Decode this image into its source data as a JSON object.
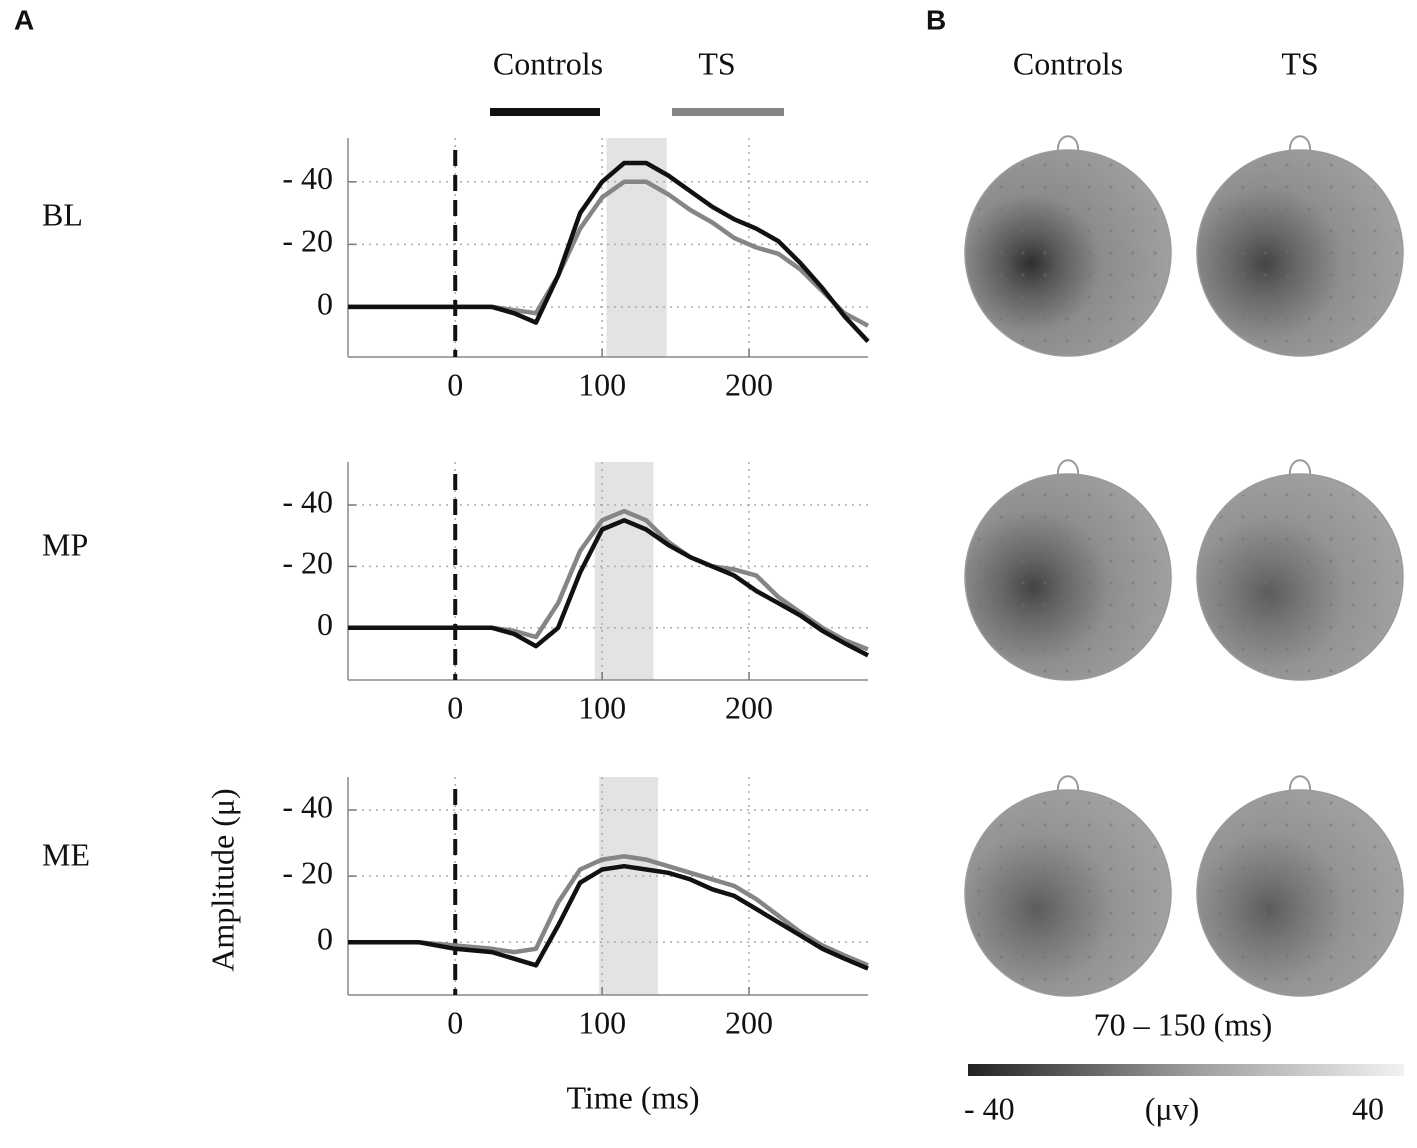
{
  "panels": [
    "A",
    "B"
  ],
  "chart_data": [
    {
      "type": "line",
      "title": "BL",
      "x": [
        -73,
        -50,
        -25,
        0,
        25,
        40,
        55,
        70,
        85,
        100,
        115,
        130,
        145,
        160,
        175,
        190,
        205,
        220,
        235,
        250,
        265,
        281
      ],
      "series": [
        {
          "name": "Controls",
          "color": "#111111",
          "values": [
            0,
            0,
            0,
            0,
            0,
            2,
            5,
            -10,
            -30,
            -40,
            -46,
            -46,
            -42,
            -37,
            -32,
            -28,
            -25,
            -21,
            -14,
            -6,
            3,
            11
          ]
        },
        {
          "name": "TS",
          "color": "#858585",
          "values": [
            0,
            0,
            0,
            0,
            0,
            1,
            2,
            -10,
            -25,
            -35,
            -40,
            -40,
            -36,
            -31,
            -27,
            -22,
            -19,
            -17,
            -12,
            -5,
            2,
            6
          ]
        }
      ],
      "shaded_region": [
        103,
        144
      ],
      "xlim": [
        -73,
        281
      ],
      "xticks": [
        0,
        100,
        200
      ],
      "ylim": [
        16,
        -54
      ],
      "yticks": [
        {
          "value": -40,
          "label": "- 40"
        },
        {
          "value": -20,
          "label": "- 20"
        },
        0
      ],
      "grid": true
    },
    {
      "type": "line",
      "title": "MP",
      "x": [
        -73,
        -50,
        -25,
        0,
        25,
        40,
        55,
        70,
        85,
        100,
        115,
        130,
        145,
        160,
        175,
        190,
        205,
        220,
        235,
        250,
        265,
        281
      ],
      "series": [
        {
          "name": "Controls",
          "color": "#111111",
          "values": [
            0,
            0,
            0,
            0,
            0,
            2,
            6,
            0,
            -18,
            -32,
            -35,
            -32,
            -27,
            -23,
            -20,
            -17,
            -12,
            -8,
            -4,
            1,
            5,
            9
          ]
        },
        {
          "name": "TS",
          "color": "#858585",
          "values": [
            0,
            0,
            0,
            0,
            0,
            1,
            3,
            -8,
            -25,
            -35,
            -38,
            -35,
            -28,
            -23,
            -20,
            -19,
            -17,
            -10,
            -5,
            0,
            4,
            7
          ]
        }
      ],
      "shaded_region": [
        95,
        135
      ],
      "xlim": [
        -73,
        281
      ],
      "xticks": [
        0,
        100,
        200
      ],
      "ylim": [
        17,
        -54
      ],
      "yticks": [
        {
          "value": -40,
          "label": "- 40"
        },
        {
          "value": -20,
          "label": "- 20"
        },
        0
      ],
      "grid": true
    },
    {
      "type": "line",
      "title": "ME",
      "x": [
        -73,
        -50,
        -25,
        0,
        25,
        40,
        55,
        70,
        85,
        100,
        115,
        130,
        145,
        160,
        175,
        190,
        205,
        220,
        235,
        250,
        265,
        281
      ],
      "series": [
        {
          "name": "Controls",
          "color": "#111111",
          "values": [
            0,
            0,
            0,
            2,
            3,
            5,
            7,
            -5,
            -18,
            -22,
            -23,
            -22,
            -21,
            -19,
            -16,
            -14,
            -10,
            -6,
            -2,
            2,
            5,
            8
          ]
        },
        {
          "name": "TS",
          "color": "#858585",
          "values": [
            0,
            0,
            0,
            1,
            2,
            3,
            2,
            -12,
            -22,
            -25,
            -26,
            -25,
            -23,
            -21,
            -19,
            -17,
            -13,
            -8,
            -3,
            1,
            4,
            7
          ]
        }
      ],
      "shaded_region": [
        98,
        138
      ],
      "xlim": [
        -73,
        281
      ],
      "xticks": [
        0,
        100,
        200
      ],
      "ylim": [
        16,
        -50
      ],
      "yticks": [
        {
          "value": -40,
          "label": "- 40"
        },
        {
          "value": -20,
          "label": "- 20"
        },
        0
      ],
      "grid": true,
      "xlabel": "Time (ms)",
      "ylabel": "Amplitude (μ)"
    }
  ],
  "topomaps": {
    "columns": [
      "Controls",
      "TS"
    ],
    "window": "70 – 150 (ms)",
    "colorbar": {
      "range": [
        -40,
        40
      ],
      "ticks": [
        {
          "value": -40,
          "label": "- 40"
        },
        40
      ],
      "label": "(μv)"
    }
  }
}
